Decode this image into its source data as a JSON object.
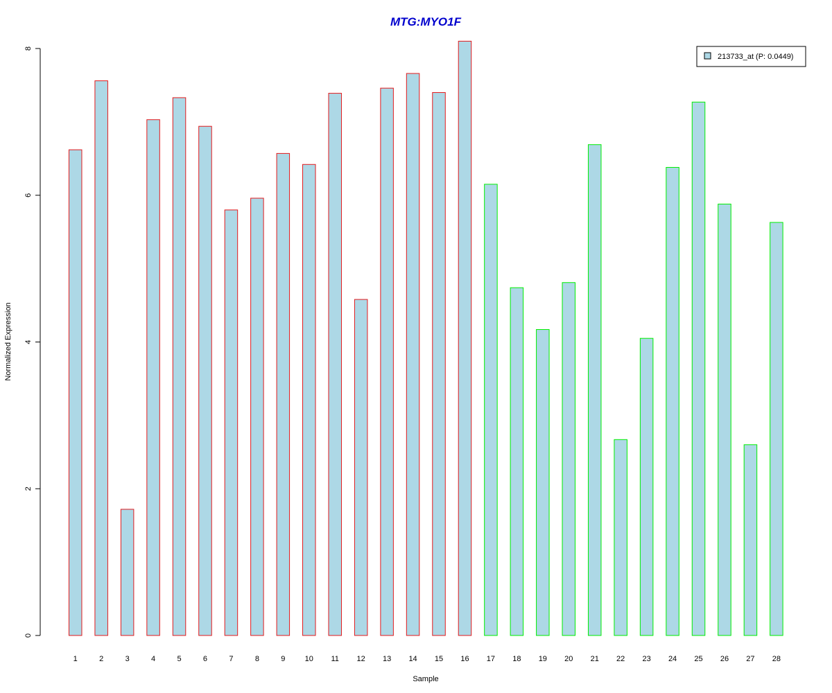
{
  "chart_data": {
    "type": "bar",
    "title": "MTG:MYO1F",
    "xlabel": "Sample",
    "ylabel": "Normalized Expression",
    "ylim": [
      0,
      8
    ],
    "yticks": [
      "0",
      "2",
      "4",
      "6",
      "8"
    ],
    "categories": [
      "1",
      "2",
      "3",
      "4",
      "5",
      "6",
      "7",
      "8",
      "9",
      "10",
      "11",
      "12",
      "13",
      "14",
      "15",
      "16",
      "17",
      "18",
      "19",
      "20",
      "21",
      "22",
      "23",
      "24",
      "25",
      "26",
      "27",
      "28"
    ],
    "series": [
      {
        "name": "213733_at (P: 0.0449)",
        "values": [
          6.62,
          7.56,
          1.72,
          7.03,
          7.33,
          6.94,
          5.8,
          5.96,
          6.57,
          6.42,
          7.39,
          4.58,
          7.46,
          7.66,
          7.4,
          8.1,
          6.15,
          4.74,
          4.17,
          4.81,
          6.69,
          2.67,
          4.05,
          6.38,
          7.27,
          5.88,
          2.6,
          5.63
        ]
      }
    ],
    "group_borders": [
      "#e31a1c",
      "#e31a1c",
      "#e31a1c",
      "#e31a1c",
      "#e31a1c",
      "#e31a1c",
      "#e31a1c",
      "#e31a1c",
      "#e31a1c",
      "#e31a1c",
      "#e31a1c",
      "#e31a1c",
      "#e31a1c",
      "#e31a1c",
      "#e31a1c",
      "#e31a1c",
      "#00ee00",
      "#00ee00",
      "#00ee00",
      "#00ee00",
      "#00ee00",
      "#00ee00",
      "#00ee00",
      "#00ee00",
      "#00ee00",
      "#00ee00",
      "#00ee00",
      "#00ee00"
    ],
    "bar_fill": "#add8e6",
    "title_color": "#0000cd",
    "legend_position": "top-right",
    "grid": false
  }
}
